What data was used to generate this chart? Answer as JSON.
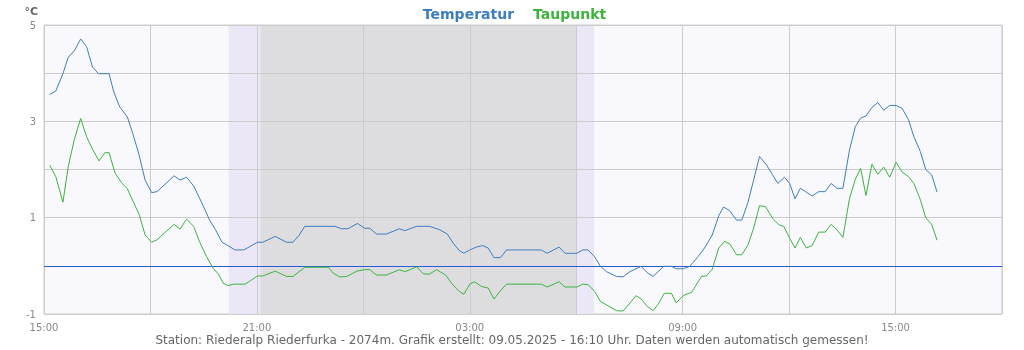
{
  "chart_data": {
    "type": "line",
    "ylabel": "°C",
    "annotations": [
      "Station: Riederalp Riederfurka - 2074m. Grafik erstellt: 09.05.2025 - 16:10 Uhr. Daten werden automatisch gemessen!"
    ],
    "xlim": [
      "2025-05-08T15:00",
      "2025-05-09T18:00"
    ],
    "xticks": [
      {
        "value": "2025-05-08T15:00",
        "label": "15:00"
      },
      {
        "value": "2025-05-08T18:00",
        "label": null
      },
      {
        "value": "2025-05-08T21:00",
        "label": "21:00"
      },
      {
        "value": "2025-05-09T00:00",
        "label": null
      },
      {
        "value": "2025-05-09T03:00",
        "label": "03:00"
      },
      {
        "value": "2025-05-09T06:00",
        "label": null
      },
      {
        "value": "2025-05-09T09:00",
        "label": "09:00"
      },
      {
        "value": "2025-05-09T12:00",
        "label": null
      },
      {
        "value": "2025-05-09T15:00",
        "label": "15:00"
      },
      {
        "value": "2025-05-09T18:00",
        "label": null
      }
    ],
    "ylim": [
      -1,
      5
    ],
    "yticks": [
      -1,
      {
        "value": 0,
        "label": null
      },
      1,
      {
        "value": 2,
        "label": null
      },
      3,
      {
        "value": 4,
        "label": null
      },
      5
    ],
    "grid": true,
    "legend": "top",
    "marker": "none",
    "line_style": "solid",
    "bands": [
      {
        "axis": "x",
        "from": "2025-05-08T20:12",
        "to": "2025-05-09T06:30",
        "color": "#ebe7f6"
      },
      {
        "axis": "x",
        "from": "2025-05-08T21:06",
        "to": "2025-05-09T06:00",
        "color": "#dddde0"
      }
    ],
    "ref_lines": [
      {
        "axis": "y",
        "value": 0,
        "color": "#2a5bd7"
      }
    ],
    "series": [
      {
        "name": "Temperatur",
        "color": "#3d7ebf",
        "x": [
          "2025-05-08T15:10",
          "2025-05-08T15:20",
          "2025-05-08T15:32",
          "2025-05-08T15:41",
          "2025-05-08T15:51",
          "2025-05-08T16:02",
          "2025-05-08T16:12",
          "2025-05-08T16:22",
          "2025-05-08T16:32",
          "2025-05-08T16:50",
          "2025-05-08T16:58",
          "2025-05-08T17:08",
          "2025-05-08T17:21",
          "2025-05-08T17:30",
          "2025-05-08T17:40",
          "2025-05-08T17:51",
          "2025-05-08T18:02",
          "2025-05-08T18:11",
          "2025-05-08T18:28",
          "2025-05-08T18:40",
          "2025-05-08T18:50",
          "2025-05-08T19:01",
          "2025-05-08T19:13",
          "2025-05-08T19:26",
          "2025-05-08T19:40",
          "2025-05-08T19:50",
          "2025-05-08T20:01",
          "2025-05-08T20:11",
          "2025-05-08T20:23",
          "2025-05-08T20:38",
          "2025-05-08T20:48",
          "2025-05-08T21:01",
          "2025-05-08T21:10",
          "2025-05-08T21:31",
          "2025-05-08T21:50",
          "2025-05-08T22:01",
          "2025-05-08T22:11",
          "2025-05-08T22:21",
          "2025-05-08T23:12",
          "2025-05-08T23:23",
          "2025-05-08T23:34",
          "2025-05-08T23:50",
          "2025-05-09T00:02",
          "2025-05-09T00:11",
          "2025-05-09T00:22",
          "2025-05-09T00:39",
          "2025-05-09T01:01",
          "2025-05-09T01:10",
          "2025-05-09T01:19",
          "2025-05-09T01:30",
          "2025-05-09T01:52",
          "2025-05-09T02:09",
          "2025-05-09T02:22",
          "2025-05-09T02:32",
          "2025-05-09T02:42",
          "2025-05-09T02:50",
          "2025-05-09T03:00",
          "2025-05-09T03:11",
          "2025-05-09T03:22",
          "2025-05-09T03:31",
          "2025-05-09T03:41",
          "2025-05-09T03:52",
          "2025-05-09T04:02",
          "2025-05-09T05:01",
          "2025-05-09T05:11",
          "2025-05-09T05:31",
          "2025-05-09T05:41",
          "2025-05-09T06:01",
          "2025-05-09T06:11",
          "2025-05-09T06:20",
          "2025-05-09T06:31",
          "2025-05-09T06:41",
          "2025-05-09T06:51",
          "2025-05-09T07:08",
          "2025-05-09T07:19",
          "2025-05-09T07:31",
          "2025-05-09T07:50",
          "2025-05-09T08:00",
          "2025-05-09T08:10",
          "2025-05-09T08:28",
          "2025-05-09T08:41",
          "2025-05-09T08:49",
          "2025-05-09T09:01",
          "2025-05-09T09:12",
          "2025-05-09T09:26",
          "2025-05-09T09:37",
          "2025-05-09T09:50",
          "2025-05-09T10:01",
          "2025-05-09T10:09",
          "2025-05-09T10:19",
          "2025-05-09T10:31",
          "2025-05-09T10:40",
          "2025-05-09T10:50",
          "2025-05-09T11:00",
          "2025-05-09T11:10",
          "2025-05-09T11:22",
          "2025-05-09T11:32",
          "2025-05-09T11:41",
          "2025-05-09T11:52",
          "2025-05-09T12:01",
          "2025-05-09T12:10",
          "2025-05-09T12:19",
          "2025-05-09T12:29",
          "2025-05-09T12:39",
          "2025-05-09T12:50",
          "2025-05-09T13:01",
          "2025-05-09T13:11",
          "2025-05-09T13:21",
          "2025-05-09T13:31",
          "2025-05-09T13:42",
          "2025-05-09T13:52",
          "2025-05-09T14:01",
          "2025-05-09T14:10",
          "2025-05-09T14:20",
          "2025-05-09T14:30",
          "2025-05-09T14:40",
          "2025-05-09T14:50",
          "2025-05-09T15:01",
          "2025-05-09T15:11",
          "2025-05-09T15:22",
          "2025-05-09T15:31",
          "2025-05-09T15:42",
          "2025-05-09T15:51",
          "2025-05-09T16:01",
          "2025-05-09T16:10"
        ],
        "values": [
          3.56,
          3.63,
          3.99,
          4.33,
          4.46,
          4.71,
          4.55,
          4.13,
          3.99,
          3.99,
          3.61,
          3.3,
          3.09,
          2.75,
          2.34,
          1.78,
          1.52,
          1.54,
          1.73,
          1.87,
          1.78,
          1.84,
          1.66,
          1.33,
          0.95,
          0.75,
          0.49,
          0.42,
          0.33,
          0.33,
          0.4,
          0.49,
          0.49,
          0.61,
          0.49,
          0.49,
          0.63,
          0.82,
          0.82,
          0.77,
          0.77,
          0.88,
          0.78,
          0.78,
          0.66,
          0.66,
          0.77,
          0.73,
          0.77,
          0.82,
          0.82,
          0.75,
          0.66,
          0.47,
          0.32,
          0.26,
          0.33,
          0.39,
          0.42,
          0.37,
          0.17,
          0.17,
          0.33,
          0.33,
          0.26,
          0.39,
          0.26,
          0.26,
          0.33,
          0.33,
          0.19,
          -0.01,
          -0.12,
          -0.22,
          -0.23,
          -0.12,
          -0.01,
          -0.14,
          -0.22,
          -0.01,
          -0.01,
          -0.06,
          -0.06,
          -0.01,
          0.19,
          0.37,
          0.64,
          1.04,
          1.22,
          1.15,
          0.95,
          0.95,
          1.3,
          1.78,
          2.27,
          2.09,
          1.89,
          1.71,
          1.84,
          1.71,
          1.39,
          1.61,
          1.53,
          1.45,
          1.54,
          1.54,
          1.71,
          1.61,
          1.61,
          2.4,
          2.89,
          3.07,
          3.11,
          3.29,
          3.39,
          3.23,
          3.33,
          3.33,
          3.27,
          3.03,
          2.68,
          2.37,
          2.0,
          1.89,
          1.54
        ]
      },
      {
        "name": "Taupunkt",
        "color": "#3cb43c",
        "x": [
          "2025-05-08T15:10",
          "2025-05-08T15:20",
          "2025-05-08T15:32",
          "2025-05-08T15:41",
          "2025-05-08T15:51",
          "2025-05-08T16:02",
          "2025-05-08T16:12",
          "2025-05-08T16:22",
          "2025-05-08T16:33",
          "2025-05-08T16:43",
          "2025-05-08T16:50",
          "2025-05-08T17:00",
          "2025-05-08T17:11",
          "2025-05-08T17:21",
          "2025-05-08T17:31",
          "2025-05-08T17:41",
          "2025-05-08T17:51",
          "2025-05-08T18:02",
          "2025-05-08T18:11",
          "2025-05-08T18:28",
          "2025-05-08T18:40",
          "2025-05-08T18:50",
          "2025-05-08T19:01",
          "2025-05-08T19:13",
          "2025-05-08T19:23",
          "2025-05-08T19:35",
          "2025-05-08T19:46",
          "2025-05-08T19:55",
          "2025-05-08T20:03",
          "2025-05-08T20:11",
          "2025-05-08T20:21",
          "2025-05-08T20:40",
          "2025-05-08T20:49",
          "2025-05-08T21:01",
          "2025-05-08T21:10",
          "2025-05-08T21:31",
          "2025-05-08T21:50",
          "2025-05-08T22:01",
          "2025-05-08T22:21",
          "2025-05-08T23:01",
          "2025-05-08T23:09",
          "2025-05-08T23:20",
          "2025-05-08T23:32",
          "2025-05-08T23:49",
          "2025-05-09T00:02",
          "2025-05-09T00:11",
          "2025-05-09T00:22",
          "2025-05-09T00:39",
          "2025-05-09T01:01",
          "2025-05-09T01:10",
          "2025-05-09T01:19",
          "2025-05-09T01:30",
          "2025-05-09T01:42",
          "2025-05-09T01:52",
          "2025-05-09T02:04",
          "2025-05-09T02:19",
          "2025-05-09T02:31",
          "2025-05-09T02:42",
          "2025-05-09T02:50",
          "2025-05-09T03:00",
          "2025-05-09T03:08",
          "2025-05-09T03:20",
          "2025-05-09T03:31",
          "2025-05-09T03:41",
          "2025-05-09T03:51",
          "2025-05-09T04:02",
          "2025-05-09T05:01",
          "2025-05-09T05:11",
          "2025-05-09T05:31",
          "2025-05-09T05:41",
          "2025-05-09T06:01",
          "2025-05-09T06:11",
          "2025-05-09T06:20",
          "2025-05-09T06:31",
          "2025-05-09T06:41",
          "2025-05-09T06:51",
          "2025-05-09T07:08",
          "2025-05-09T07:19",
          "2025-05-09T07:31",
          "2025-05-09T07:41",
          "2025-05-09T07:50",
          "2025-05-09T08:00",
          "2025-05-09T08:10",
          "2025-05-09T08:19",
          "2025-05-09T08:29",
          "2025-05-09T08:41",
          "2025-05-09T08:49",
          "2025-05-09T09:01",
          "2025-05-09T09:04",
          "2025-05-09T09:15",
          "2025-05-09T09:32",
          "2025-05-09T09:40",
          "2025-05-09T09:50",
          "2025-05-09T10:01",
          "2025-05-09T10:11",
          "2025-05-09T10:20",
          "2025-05-09T10:31",
          "2025-05-09T10:40",
          "2025-05-09T10:50",
          "2025-05-09T11:00",
          "2025-05-09T11:10",
          "2025-05-09T11:20",
          "2025-05-09T11:32",
          "2025-05-09T11:43",
          "2025-05-09T11:51",
          "2025-05-09T12:01",
          "2025-05-09T12:10",
          "2025-05-09T12:19",
          "2025-05-09T12:29",
          "2025-05-09T12:39",
          "2025-05-09T12:50",
          "2025-05-09T13:01",
          "2025-05-09T13:11",
          "2025-05-09T13:21",
          "2025-05-09T13:31",
          "2025-05-09T13:42",
          "2025-05-09T13:52",
          "2025-05-09T14:01",
          "2025-05-09T14:10",
          "2025-05-09T14:20",
          "2025-05-09T14:30",
          "2025-05-09T14:40",
          "2025-05-09T14:50",
          "2025-05-09T15:01",
          "2025-05-09T15:11",
          "2025-05-09T15:22",
          "2025-05-09T15:31",
          "2025-05-09T15:42",
          "2025-05-09T15:51",
          "2025-05-09T16:01",
          "2025-05-09T16:10"
        ],
        "values": [
          2.08,
          1.85,
          1.32,
          2.06,
          2.61,
          3.06,
          2.68,
          2.42,
          2.18,
          2.35,
          2.35,
          1.93,
          1.73,
          1.6,
          1.33,
          1.06,
          0.64,
          0.49,
          0.54,
          0.73,
          0.86,
          0.76,
          0.97,
          0.82,
          0.5,
          0.19,
          -0.05,
          -0.17,
          -0.36,
          -0.41,
          -0.38,
          -0.38,
          -0.31,
          -0.21,
          -0.21,
          -0.11,
          -0.22,
          -0.22,
          -0.03,
          -0.03,
          -0.15,
          -0.23,
          -0.22,
          -0.11,
          -0.08,
          -0.08,
          -0.19,
          -0.19,
          -0.08,
          -0.12,
          -0.08,
          -0.02,
          -0.17,
          -0.17,
          -0.08,
          -0.19,
          -0.39,
          -0.53,
          -0.59,
          -0.38,
          -0.33,
          -0.43,
          -0.46,
          -0.69,
          -0.53,
          -0.38,
          -0.38,
          -0.44,
          -0.33,
          -0.44,
          -0.44,
          -0.38,
          -0.39,
          -0.53,
          -0.74,
          -0.81,
          -0.93,
          -0.94,
          -0.77,
          -0.62,
          -0.69,
          -0.84,
          -0.93,
          -0.79,
          -0.57,
          -0.57,
          -0.77,
          -0.62,
          -0.6,
          -0.55,
          -0.22,
          -0.21,
          -0.07,
          0.37,
          0.51,
          0.45,
          0.23,
          0.23,
          0.42,
          0.78,
          1.25,
          1.23,
          0.99,
          0.85,
          0.82,
          0.57,
          0.37,
          0.59,
          0.37,
          0.42,
          0.7,
          0.7,
          0.86,
          0.75,
          0.59,
          1.39,
          1.8,
          2.02,
          1.46,
          2.11,
          1.9,
          2.05,
          1.84,
          2.15,
          1.95,
          1.85,
          1.71,
          1.37,
          1.0,
          0.86,
          0.54
        ]
      }
    ]
  }
}
